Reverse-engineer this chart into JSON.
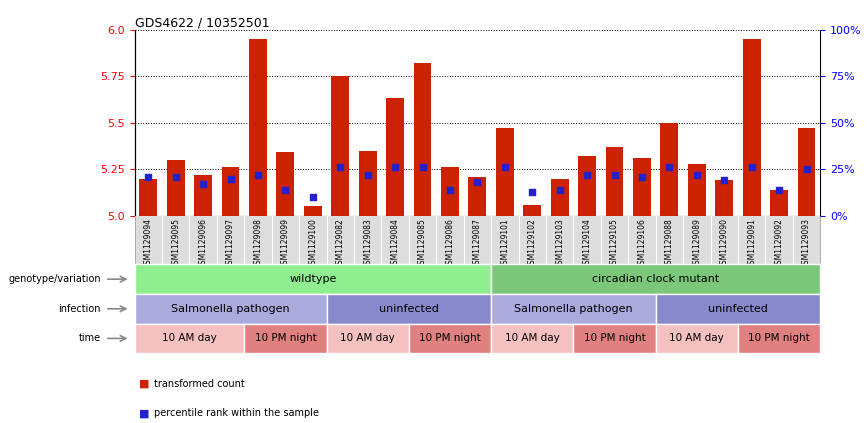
{
  "title": "GDS4622 / 10352501",
  "samples": [
    "GSM1129094",
    "GSM1129095",
    "GSM1129096",
    "GSM1129097",
    "GSM1129098",
    "GSM1129099",
    "GSM1129100",
    "GSM1129082",
    "GSM1129083",
    "GSM1129084",
    "GSM1129085",
    "GSM1129086",
    "GSM1129087",
    "GSM1129101",
    "GSM1129102",
    "GSM1129103",
    "GSM1129104",
    "GSM1129105",
    "GSM1129106",
    "GSM1129088",
    "GSM1129089",
    "GSM1129090",
    "GSM1129091",
    "GSM1129092",
    "GSM1129093"
  ],
  "red_values": [
    5.2,
    5.3,
    5.22,
    5.26,
    5.95,
    5.34,
    5.05,
    5.75,
    5.35,
    5.63,
    5.82,
    5.26,
    5.21,
    5.47,
    5.06,
    5.2,
    5.32,
    5.37,
    5.31,
    5.5,
    5.28,
    5.19,
    5.95,
    5.14,
    5.47
  ],
  "blue_values": [
    21,
    21,
    17,
    20,
    22,
    14,
    10,
    26,
    22,
    26,
    26,
    14,
    18,
    26,
    13,
    14,
    22,
    22,
    21,
    26,
    22,
    19,
    26,
    14,
    25
  ],
  "ylim_left": [
    5.0,
    6.0
  ],
  "ylim_right": [
    0,
    100
  ],
  "yticks_left": [
    5.0,
    5.25,
    5.5,
    5.75,
    6.0
  ],
  "yticks_right": [
    0,
    25,
    50,
    75,
    100
  ],
  "ytick_right_labels": [
    "0%",
    "25%",
    "50%",
    "75%",
    "100%"
  ],
  "genotype_groups": [
    {
      "label": "wildtype",
      "start": 0,
      "end": 13,
      "color": "#90EE90"
    },
    {
      "label": "circadian clock mutant",
      "start": 13,
      "end": 25,
      "color": "#7BC87B"
    }
  ],
  "infection_groups": [
    {
      "label": "Salmonella pathogen",
      "start": 0,
      "end": 7,
      "color": "#AAAADD"
    },
    {
      "label": "uninfected",
      "start": 7,
      "end": 13,
      "color": "#8888CC"
    },
    {
      "label": "Salmonella pathogen",
      "start": 13,
      "end": 19,
      "color": "#AAAADD"
    },
    {
      "label": "uninfected",
      "start": 19,
      "end": 25,
      "color": "#8888CC"
    }
  ],
  "time_groups": [
    {
      "label": "10 AM day",
      "start": 0,
      "end": 4,
      "color": "#F5C0C0"
    },
    {
      "label": "10 PM night",
      "start": 4,
      "end": 7,
      "color": "#E08080"
    },
    {
      "label": "10 AM day",
      "start": 7,
      "end": 10,
      "color": "#F5C0C0"
    },
    {
      "label": "10 PM night",
      "start": 10,
      "end": 13,
      "color": "#E08080"
    },
    {
      "label": "10 AM day",
      "start": 13,
      "end": 16,
      "color": "#F5C0C0"
    },
    {
      "label": "10 PM night",
      "start": 16,
      "end": 19,
      "color": "#E08080"
    },
    {
      "label": "10 AM day",
      "start": 19,
      "end": 22,
      "color": "#F5C0C0"
    },
    {
      "label": "10 PM night",
      "start": 22,
      "end": 25,
      "color": "#E08080"
    }
  ],
  "bar_color": "#CC2200",
  "dot_color": "#2222CC",
  "legend_items": [
    {
      "label": "transformed count",
      "color": "#CC2200"
    },
    {
      "label": "percentile rank within the sample",
      "color": "#2222CC"
    }
  ],
  "fig_width": 8.68,
  "fig_height": 4.23,
  "dpi": 100
}
